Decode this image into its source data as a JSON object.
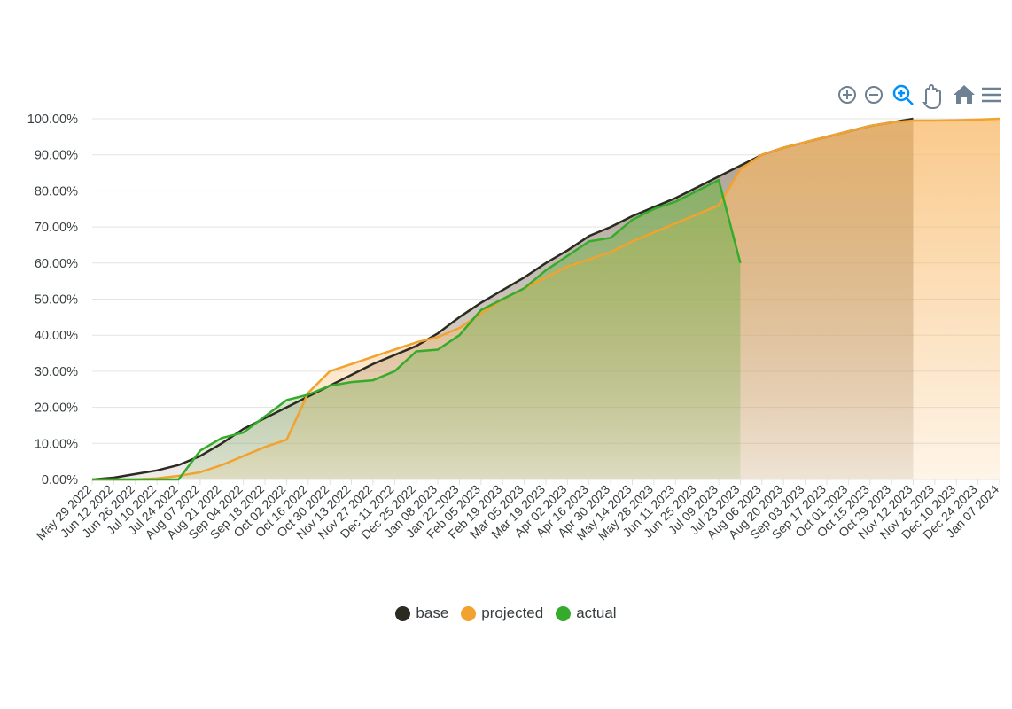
{
  "chart_data": {
    "type": "area",
    "x": [
      "2022-05-29",
      "2022-06-12",
      "2022-06-26",
      "2022-07-10",
      "2022-07-24",
      "2022-08-07",
      "2022-08-21",
      "2022-09-04",
      "2022-09-18",
      "2022-10-02",
      "2022-10-16",
      "2022-10-30",
      "2022-11-13",
      "2022-11-27",
      "2022-12-11",
      "2022-12-25",
      "2023-01-08",
      "2023-01-22",
      "2023-02-05",
      "2023-02-19",
      "2023-03-05",
      "2023-03-19",
      "2023-04-02",
      "2023-04-16",
      "2023-04-30",
      "2023-05-14",
      "2023-05-28",
      "2023-06-11",
      "2023-06-25",
      "2023-07-09",
      "2023-07-23",
      "2023-08-06",
      "2023-08-20",
      "2023-09-03",
      "2023-09-17",
      "2023-10-01",
      "2023-10-15",
      "2023-10-29",
      "2023-11-12",
      "2023-11-26",
      "2023-12-10",
      "2023-12-24",
      "2024-01-07"
    ],
    "series": [
      {
        "name": "base",
        "color": "#2b2b22",
        "fill": "#8a7a66",
        "values": [
          0,
          0.5,
          1.5,
          2.5,
          4,
          6.5,
          10,
          14,
          17,
          20,
          23,
          26,
          29,
          32,
          34.5,
          37,
          40.5,
          45,
          49,
          52.5,
          56,
          60,
          63.5,
          67.5,
          70,
          73,
          75.5,
          78,
          81,
          84,
          87,
          90,
          92,
          93.5,
          95,
          96.5,
          98,
          99,
          100,
          null,
          null,
          null,
          null
        ]
      },
      {
        "name": "projected",
        "color": "#f2a22e",
        "fill": "#f8b866",
        "values": [
          0,
          0,
          0,
          0.3,
          1,
          2,
          4,
          6.5,
          9,
          11,
          24,
          30,
          32,
          34,
          36,
          38,
          39.5,
          42,
          46,
          50,
          53,
          56,
          59,
          61,
          63,
          66,
          68.5,
          71,
          73.5,
          76,
          86,
          90,
          92,
          93.5,
          95,
          96.5,
          98,
          99,
          99.5,
          99.5,
          99.6,
          99.8,
          100
        ]
      },
      {
        "name": "actual",
        "color": "#35ab2c",
        "fill": "#7cb356",
        "values": [
          0,
          0,
          0,
          0,
          0,
          8,
          11.5,
          13,
          17.5,
          22,
          23.5,
          26,
          27,
          27.5,
          30,
          35.5,
          36,
          40,
          47,
          50,
          53,
          58,
          62,
          66,
          67,
          72,
          75,
          77,
          80,
          83,
          60,
          null,
          null,
          null,
          null,
          null,
          null,
          null,
          null,
          null,
          null,
          null,
          null
        ]
      }
    ],
    "xlim": [
      "2022-05-29",
      "2024-01-07"
    ],
    "xticks": [
      {
        "value": "2022-05-29",
        "label": "May 29 2022"
      },
      {
        "value": "2022-06-12",
        "label": "Jun 12 2022"
      },
      {
        "value": "2022-06-26",
        "label": "Jun 26 2022"
      },
      {
        "value": "2022-07-10",
        "label": "Jul 10 2022"
      },
      {
        "value": "2022-07-24",
        "label": "Jul 24 2022"
      },
      {
        "value": "2022-08-07",
        "label": "Aug 07 2022"
      },
      {
        "value": "2022-08-21",
        "label": "Aug 21 2022"
      },
      {
        "value": "2022-09-04",
        "label": "Sep 04 2022"
      },
      {
        "value": "2022-09-18",
        "label": "Sep 18 2022"
      },
      {
        "value": "2022-10-02",
        "label": "Oct 02 2022"
      },
      {
        "value": "2022-10-16",
        "label": "Oct 16 2022"
      },
      {
        "value": "2022-10-30",
        "label": "Oct 30 2022"
      },
      {
        "value": "2022-11-13",
        "label": "Nov 13 2022"
      },
      {
        "value": "2022-11-27",
        "label": "Nov 27 2022"
      },
      {
        "value": "2022-12-11",
        "label": "Dec 11 2022"
      },
      {
        "value": "2022-12-25",
        "label": "Dec 25 2022"
      },
      {
        "value": "2023-01-08",
        "label": "Jan 08 2023"
      },
      {
        "value": "2023-01-22",
        "label": "Jan 22 2023"
      },
      {
        "value": "2023-02-05",
        "label": "Feb 05 2023"
      },
      {
        "value": "2023-02-19",
        "label": "Feb 19 2023"
      },
      {
        "value": "2023-03-05",
        "label": "Mar 05 2023"
      },
      {
        "value": "2023-03-19",
        "label": "Mar 19 2023"
      },
      {
        "value": "2023-04-02",
        "label": "Apr 02 2023"
      },
      {
        "value": "2023-04-16",
        "label": "Apr 16 2023"
      },
      {
        "value": "2023-04-30",
        "label": "Apr 30 2023"
      },
      {
        "value": "2023-05-14",
        "label": "May 14 2023"
      },
      {
        "value": "2023-05-28",
        "label": "May 28 2023"
      },
      {
        "value": "2023-06-11",
        "label": "Jun 11 2023"
      },
      {
        "value": "2023-06-25",
        "label": "Jun 25 2023"
      },
      {
        "value": "2023-07-09",
        "label": "Jul 09 2023"
      },
      {
        "value": "2023-07-23",
        "label": "Jul 23 2023"
      },
      {
        "value": "2023-08-06",
        "label": "Aug 06 2023"
      },
      {
        "value": "2023-08-20",
        "label": "Aug 20 2023"
      },
      {
        "value": "2023-09-03",
        "label": "Sep 03 2023"
      },
      {
        "value": "2023-09-17",
        "label": "Sep 17 2023"
      },
      {
        "value": "2023-10-01",
        "label": "Oct 01 2023"
      },
      {
        "value": "2023-10-15",
        "label": "Oct 15 2023"
      },
      {
        "value": "2023-10-29",
        "label": "Oct 29 2023"
      },
      {
        "value": "2023-11-12",
        "label": "Nov 12 2023"
      },
      {
        "value": "2023-11-26",
        "label": "Nov 26 2023"
      },
      {
        "value": "2023-12-10",
        "label": "Dec 10 2023"
      },
      {
        "value": "2023-12-24",
        "label": "Dec 24 2023"
      },
      {
        "value": "2024-01-07",
        "label": "Jan 07 2024"
      }
    ],
    "ylim": [
      0,
      100
    ],
    "yticks": [
      {
        "value": 0,
        "label": "0.00%"
      },
      {
        "value": 10,
        "label": "10.00%"
      },
      {
        "value": 20,
        "label": "20.00%"
      },
      {
        "value": 30,
        "label": "30.00%"
      },
      {
        "value": 40,
        "label": "40.00%"
      },
      {
        "value": 50,
        "label": "50.00%"
      },
      {
        "value": 60,
        "label": "60.00%"
      },
      {
        "value": 70,
        "label": "70.00%"
      },
      {
        "value": 80,
        "label": "80.00%"
      },
      {
        "value": 90,
        "label": "90.00%"
      },
      {
        "value": 100,
        "label": "100.00%"
      }
    ],
    "grid": true,
    "legend": "bottom"
  }
}
